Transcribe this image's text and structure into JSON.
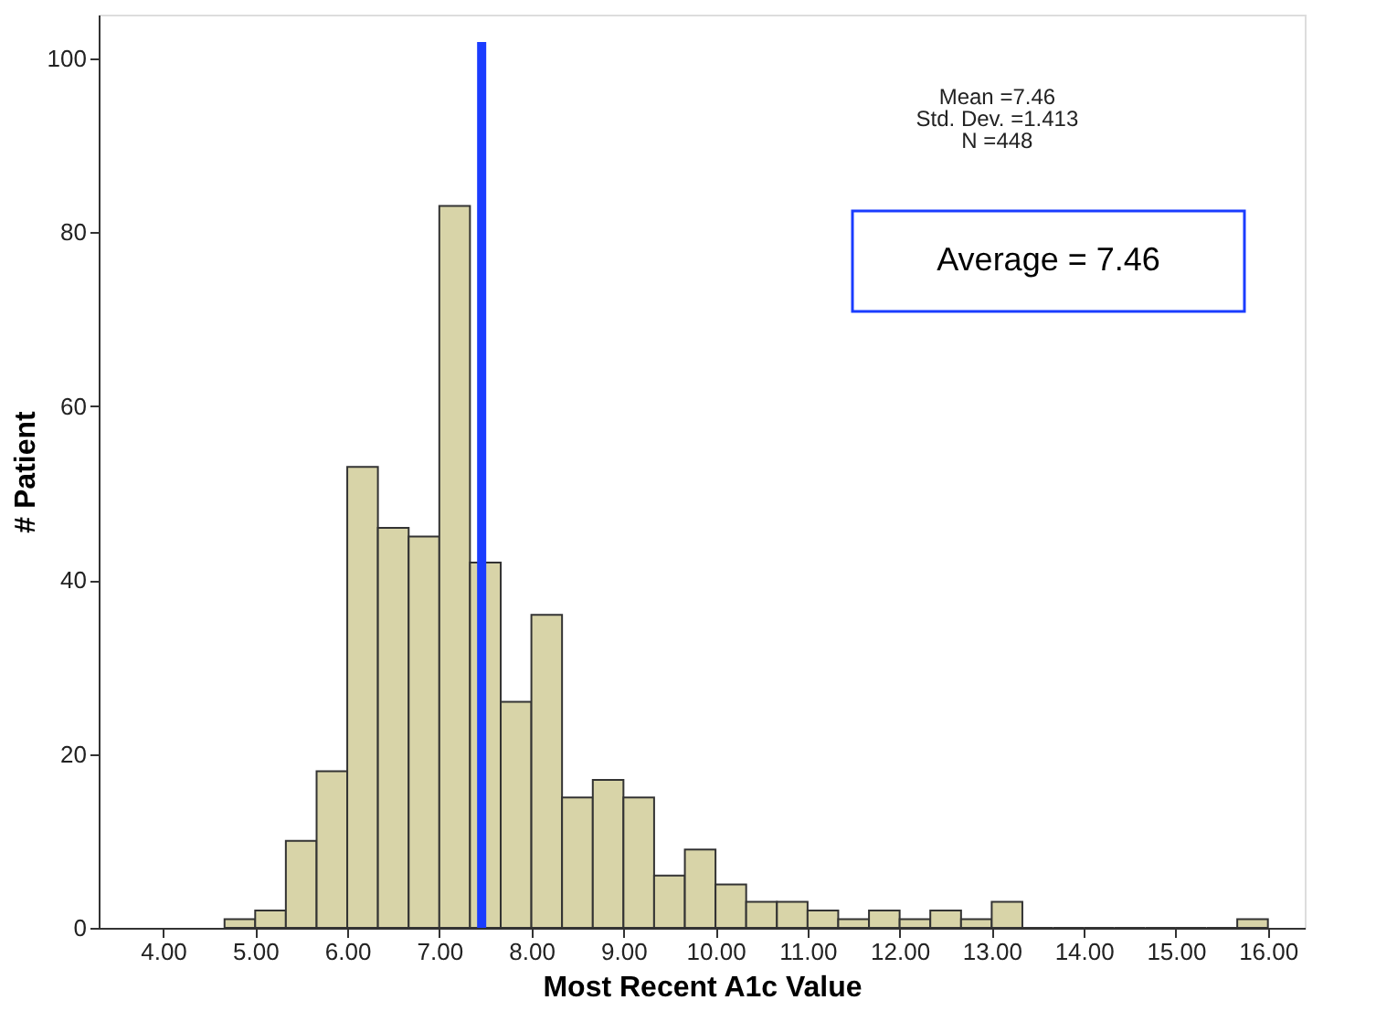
{
  "chart_data": {
    "type": "histogram",
    "xlabel": "Most Recent A1c Value",
    "ylabel": "# Patient",
    "bins": [
      4.667,
      5.0,
      5.333,
      5.667,
      6.0,
      6.333,
      6.667,
      7.0,
      7.333,
      7.667,
      8.0,
      8.333,
      8.667,
      9.0,
      9.333,
      9.667,
      10.0,
      10.333,
      10.667,
      11.0,
      11.333,
      11.667,
      12.0,
      12.333,
      12.667,
      13.0,
      13.333,
      13.667,
      14.0,
      14.333,
      14.667,
      15.0,
      15.333,
      15.667,
      16.0
    ],
    "values": [
      1,
      2,
      10,
      18,
      53,
      46,
      45,
      83,
      42,
      26,
      36,
      15,
      17,
      15,
      6,
      9,
      5,
      3,
      3,
      2,
      1,
      2,
      1,
      2,
      1,
      3,
      0,
      0,
      0,
      0,
      0,
      0,
      0,
      1
    ],
    "color": "#d8d4a8",
    "xlim": [
      3.3,
      16.4
    ],
    "xticks": [
      {
        "value": 4,
        "label": "4.00"
      },
      {
        "value": 5,
        "label": "5.00"
      },
      {
        "value": 6,
        "label": "6.00"
      },
      {
        "value": 7,
        "label": "7.00"
      },
      {
        "value": 8,
        "label": "8.00"
      },
      {
        "value": 9,
        "label": "9.00"
      },
      {
        "value": 10,
        "label": "10.00"
      },
      {
        "value": 11,
        "label": "11.00"
      },
      {
        "value": 12,
        "label": "12.00"
      },
      {
        "value": 13,
        "label": "13.00"
      },
      {
        "value": 14,
        "label": "14.00"
      },
      {
        "value": 15,
        "label": "15.00"
      },
      {
        "value": 16,
        "label": "16.00"
      }
    ],
    "ylim": [
      0,
      105
    ],
    "yticks": [
      0,
      20,
      40,
      60,
      80,
      100
    ],
    "ref_lines": [
      {
        "axis": "x",
        "value": 7.46,
        "color": "#1a3cff"
      }
    ],
    "annotations": [
      "Mean =7.46",
      "Std. Dev. =1.413",
      "N =448",
      "Average = 7.46"
    ],
    "grid": false
  }
}
